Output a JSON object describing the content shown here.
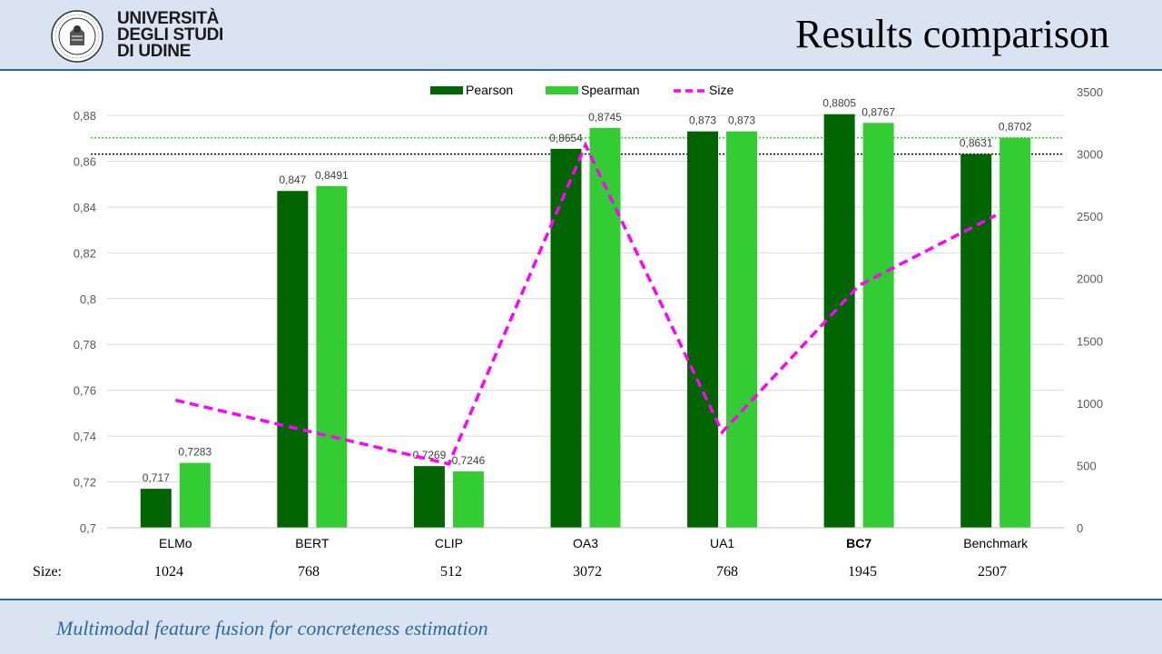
{
  "header": {
    "logo_lines": [
      "UNIVERSITÀ",
      "DEGLI STUDI",
      "DI UDINE"
    ],
    "title": "Results comparison"
  },
  "footer": {
    "text": "Multimodal feature fusion for concreteness estimation"
  },
  "size_row": {
    "label": "Size:",
    "values": [
      "1024",
      "768",
      "512",
      "3072",
      "768",
      "1945",
      "2507"
    ]
  },
  "colors": {
    "pearson": "#006400",
    "spearman": "#33cc33",
    "size": "#ff00ff",
    "header_bg": "#d9e3f2",
    "accent": "#2e6aa1"
  },
  "chart_data": {
    "type": "bar",
    "categories": [
      "ELMo",
      "BERT",
      "CLIP",
      "OA3",
      "UA1",
      "BC7",
      "Benchmark"
    ],
    "bold_category": "BC7",
    "series": [
      {
        "name": "Pearson",
        "type": "bar",
        "axis": "left",
        "values": [
          0.717,
          0.847,
          0.7269,
          0.8654,
          0.873,
          0.8805,
          0.8631
        ],
        "labels": [
          "0,717",
          "0,847",
          "0,7269",
          "0,8654",
          "0,873",
          "0,8805",
          "0,8631"
        ]
      },
      {
        "name": "Spearman",
        "type": "bar",
        "axis": "left",
        "values": [
          0.7283,
          0.8491,
          0.7246,
          0.8745,
          0.873,
          0.8767,
          0.8702
        ],
        "labels": [
          "0,7283",
          "0,8491",
          "0,7246",
          "0,8745",
          "0,873",
          "0,8767",
          "0,8702"
        ]
      },
      {
        "name": "Size",
        "type": "line",
        "style": "dashed",
        "axis": "right",
        "values": [
          1024,
          768,
          512,
          3072,
          768,
          1945,
          2507
        ]
      }
    ],
    "ylim": [
      0.7,
      0.88
    ],
    "y_ticks": [
      0.7,
      0.72,
      0.74,
      0.76,
      0.78,
      0.8,
      0.82,
      0.84,
      0.86,
      0.88
    ],
    "y_tick_labels": [
      "0,7",
      "0,72",
      "0,74",
      "0,76",
      "0,78",
      "0,8",
      "0,82",
      "0,84",
      "0,86",
      "0,88"
    ],
    "y2lim": [
      0,
      3500
    ],
    "y2_ticks": [
      0,
      500,
      1000,
      1500,
      2000,
      2500,
      3000,
      3500
    ],
    "y2_tick_labels": [
      "0",
      "500",
      "1000",
      "1500",
      "2000",
      "2500",
      "3000",
      "3500"
    ],
    "reference_lines": [
      {
        "value": 0.8631,
        "style": "dotted",
        "color": "#000000"
      },
      {
        "value": 0.8702,
        "style": "dotted",
        "color": "#33cc33"
      }
    ],
    "grid": true,
    "legend": "top"
  }
}
